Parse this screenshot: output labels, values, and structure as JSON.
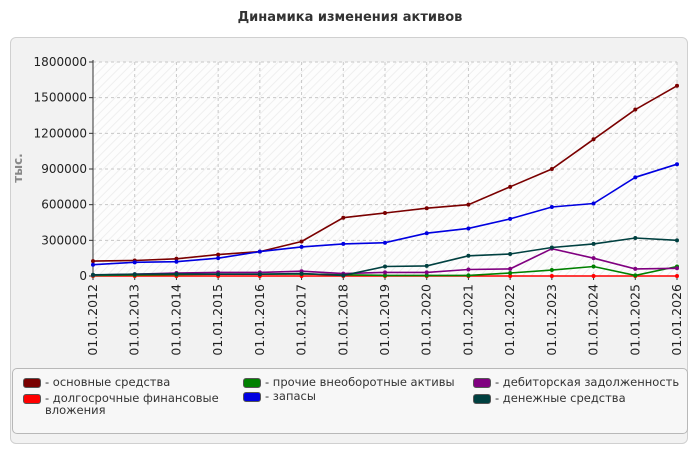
{
  "chart_data": {
    "type": "line",
    "title": "Динамика изменения активов",
    "ylabel": "тыс.",
    "xlabel": "",
    "ylim": [
      0,
      1800000
    ],
    "yticks": [
      0,
      300000,
      600000,
      900000,
      1200000,
      1500000,
      1800000
    ],
    "grid": true,
    "legend_position": "bottom",
    "x": [
      "01.01.2012",
      "01.01.2013",
      "01.01.2014",
      "01.01.2015",
      "01.01.2016",
      "01.01.2017",
      "01.01.2018",
      "01.01.2019",
      "01.01.2020",
      "01.01.2021",
      "01.01.2022",
      "01.01.2023",
      "01.01.2024",
      "01.01.2025",
      "01.01.2026"
    ],
    "series": [
      {
        "name": "- основные средства",
        "color": "#7a0000",
        "values": [
          125000,
          130000,
          145000,
          180000,
          205000,
          290000,
          490000,
          530000,
          570000,
          600000,
          750000,
          900000,
          1150000,
          1400000,
          1600000
        ]
      },
      {
        "name": "- долгосрочные финансовые вложения",
        "color": "#ff0000",
        "values": [
          0,
          0,
          0,
          0,
          0,
          0,
          0,
          0,
          0,
          0,
          0,
          0,
          0,
          0,
          0
        ]
      },
      {
        "name": "- прочие внеоборотные активы",
        "color": "#008000",
        "values": [
          5000,
          8000,
          12000,
          15000,
          15000,
          18000,
          10000,
          5000,
          5000,
          5000,
          25000,
          50000,
          80000,
          5000,
          80000
        ]
      },
      {
        "name": "- запасы",
        "color": "#0000e0",
        "values": [
          95000,
          115000,
          120000,
          150000,
          205000,
          245000,
          270000,
          280000,
          360000,
          400000,
          480000,
          580000,
          610000,
          830000,
          940000
        ]
      },
      {
        "name": "- дебиторская задолженность",
        "color": "#800080",
        "values": [
          8000,
          15000,
          25000,
          30000,
          30000,
          40000,
          20000,
          30000,
          30000,
          55000,
          60000,
          230000,
          150000,
          60000,
          65000
        ]
      },
      {
        "name": "- денежные средства",
        "color": "#004040",
        "values": [
          10000,
          15000,
          18000,
          15000,
          15000,
          20000,
          5000,
          80000,
          85000,
          170000,
          185000,
          240000,
          270000,
          320000,
          300000
        ]
      }
    ]
  }
}
